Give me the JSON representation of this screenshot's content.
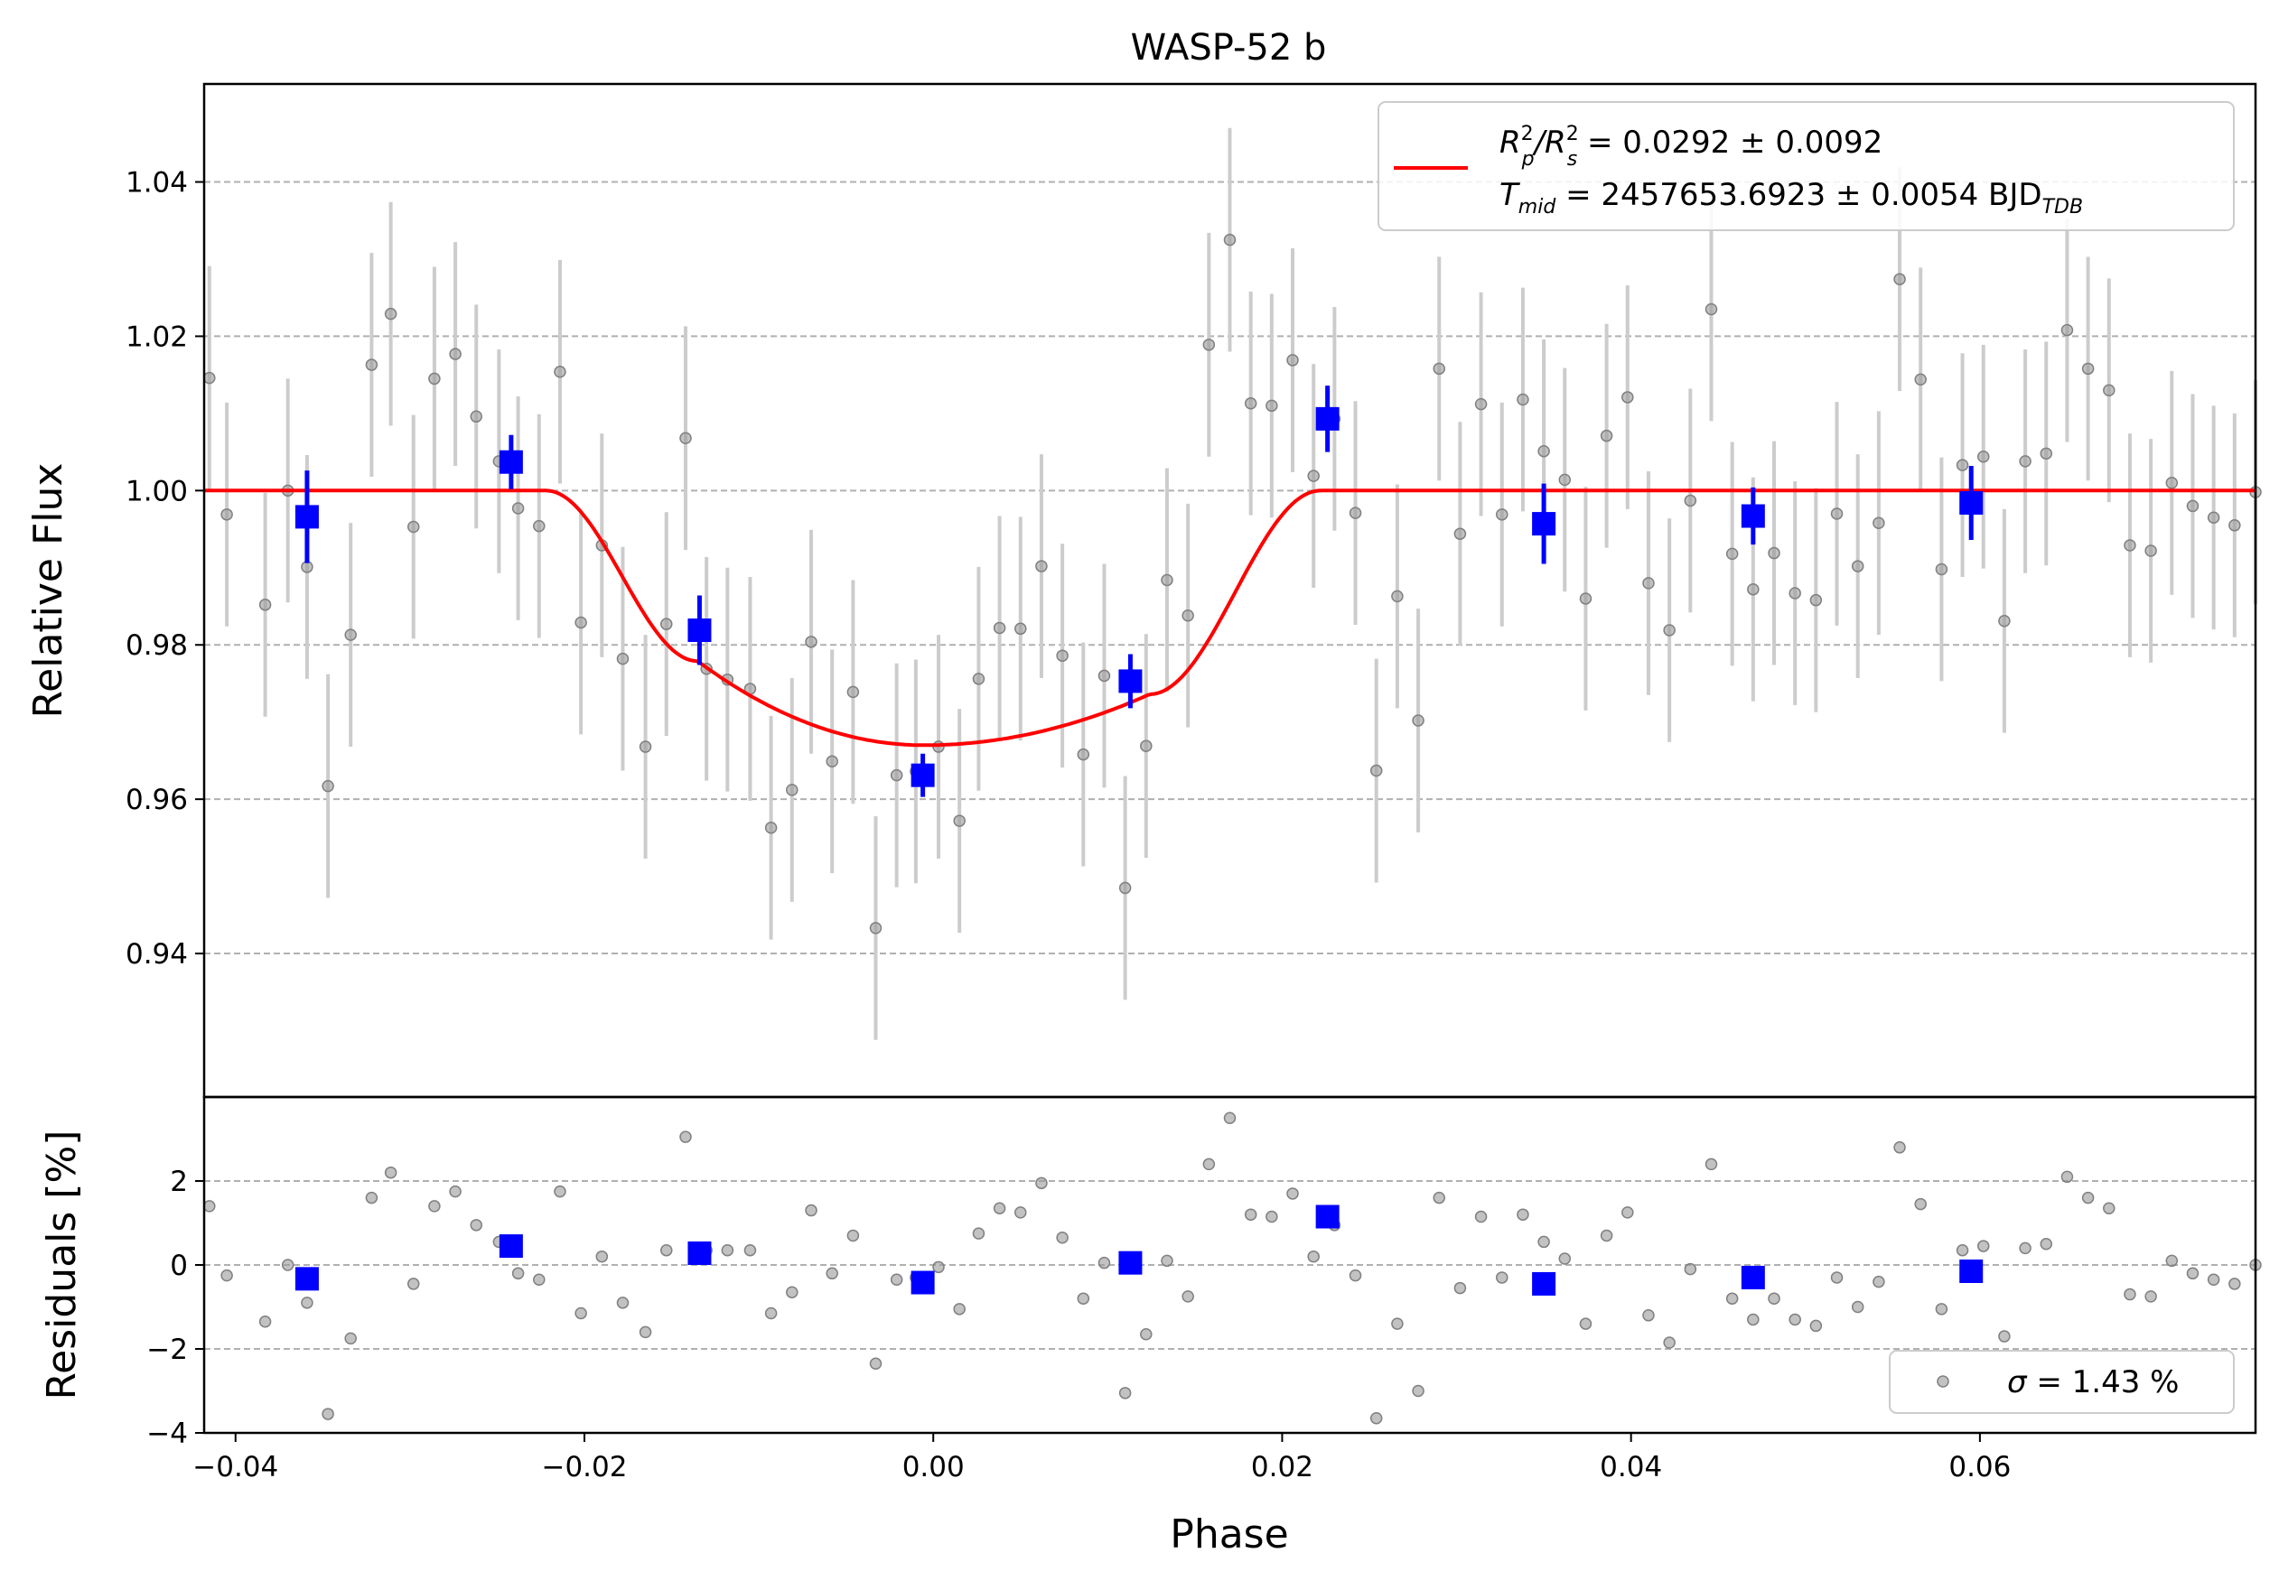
{
  "chart_data": {
    "type": "scatter",
    "title": "WASP-52 b",
    "xlabel": "Phase",
    "xlim": [
      -0.0418,
      0.0758
    ],
    "xticks": [
      -0.04,
      -0.02,
      0.0,
      0.02,
      0.04,
      0.06
    ],
    "xtick_labels": [
      "−0.04",
      "−0.02",
      "0.00",
      "0.02",
      "0.04",
      "0.06"
    ],
    "grid": "horizontal dashed",
    "top_panel": {
      "ylabel": "Relative Flux",
      "ylim": [
        0.9214,
        1.0527
      ],
      "yticks": [
        0.94,
        0.96,
        0.98,
        1.0,
        1.02,
        1.04
      ],
      "ytick_labels": [
        "0.94",
        "0.96",
        "0.98",
        "1.00",
        "1.02",
        "1.04"
      ],
      "data": {
        "x": [
          -0.0415,
          -0.0405,
          -0.0383,
          -0.037,
          -0.0359,
          -0.0347,
          -0.0334,
          -0.0322,
          -0.0311,
          -0.0298,
          -0.0286,
          -0.0274,
          -0.0262,
          -0.0249,
          -0.0238,
          -0.0226,
          -0.0214,
          -0.0202,
          -0.019,
          -0.0178,
          -0.0165,
          -0.0153,
          -0.0142,
          -0.013,
          -0.0118,
          -0.0105,
          -0.0093,
          -0.0081,
          -0.007,
          -0.0058,
          -0.0046,
          -0.0033,
          -0.0021,
          -0.001,
          0.0003,
          0.0015,
          0.0026,
          0.0038,
          0.005,
          0.0062,
          0.0074,
          0.0086,
          0.0098,
          0.011,
          0.0122,
          0.0134,
          0.0146,
          0.0158,
          0.017,
          0.0182,
          0.0194,
          0.0206,
          0.0218,
          0.023,
          0.0242,
          0.0254,
          0.0266,
          0.0278,
          0.029,
          0.0302,
          0.0314,
          0.0326,
          0.0338,
          0.035,
          0.0362,
          0.0374,
          0.0386,
          0.0398,
          0.041,
          0.0422,
          0.0434,
          0.0446,
          0.0458,
          0.047,
          0.0482,
          0.0494,
          0.0506,
          0.0518,
          0.053,
          0.0542,
          0.0554,
          0.0566,
          0.0578,
          0.059,
          0.0602,
          0.0614,
          0.0626,
          0.0638,
          0.065,
          0.0662,
          0.0674,
          0.0686,
          0.0698,
          0.071,
          0.0722,
          0.0734,
          0.0746,
          0.0758
        ],
        "y": [
          1.0146,
          0.9969,
          0.9852,
          1.0,
          0.9901,
          0.9617,
          0.9813,
          1.0163,
          1.0229,
          0.9953,
          1.0145,
          1.0177,
          1.0096,
          1.0038,
          0.9977,
          0.9954,
          1.0154,
          0.9829,
          0.9929,
          0.9782,
          0.9668,
          0.9827,
          1.0068,
          0.9769,
          0.9755,
          0.9743,
          0.9563,
          0.9612,
          0.9804,
          0.9649,
          0.9739,
          0.9433,
          0.9631,
          0.9636,
          0.9668,
          0.9572,
          0.9756,
          0.9822,
          0.9821,
          0.9902,
          0.9786,
          0.9658,
          0.976,
          0.9485,
          0.9669,
          0.9884,
          0.9838,
          1.0189,
          1.0325,
          1.0113,
          1.011,
          1.0169,
          1.0019,
          1.0093,
          0.9971,
          0.9637,
          0.9863,
          0.9702,
          1.0158,
          0.9944,
          1.0112,
          0.9969,
          1.0118,
          1.0051,
          1.0014,
          0.986,
          1.0071,
          1.0121,
          0.988,
          0.9819,
          0.9987,
          1.0235,
          0.9918,
          0.9872,
          0.9919,
          0.9867,
          0.9858,
          0.997,
          0.9902,
          0.9958,
          1.0274,
          1.0144,
          0.9898,
          1.0033,
          1.0044,
          0.9831,
          1.0038,
          1.0048,
          1.0208,
          1.0158,
          1.013,
          0.9929,
          0.9922,
          1.001,
          0.998,
          0.9965,
          0.9955,
          0.9998
        ],
        "yerr": 0.0145
      },
      "binned": {
        "x": [
          -0.0359,
          -0.0242,
          -0.0134,
          -0.0006,
          0.0113,
          0.0226,
          0.035,
          0.047,
          0.0595
        ],
        "y": [
          0.9966,
          1.0037,
          0.9819,
          0.9631,
          0.9753,
          1.0093,
          0.9957,
          0.9967,
          0.9984
        ],
        "yerr": [
          0.006,
          0.0035,
          0.0045,
          0.0028,
          0.0035,
          0.0043,
          0.0052,
          0.0037,
          0.0048
        ]
      },
      "model": {
        "baseline": 1.0,
        "depth": 0.033,
        "t1": -0.0222,
        "t2": -0.0135,
        "t3": 0.0124,
        "t4": 0.0222
      },
      "legend": {
        "placement": "top-right",
        "line1_lhs_base": "R",
        "line1_lhs_sup": "2",
        "line1_lhs_sub": "p",
        "line1_slash": "/R",
        "line1_lhs2_sup": "2",
        "line1_lhs2_sub": "s",
        "line1_rhs": " = 0.0292 ± 0.0092",
        "line2_base": "T",
        "line2_sub": "mid",
        "line2_rhs": " = 2457653.6923 ± 0.0054 BJD",
        "line2_unit_sub": "TDB"
      }
    },
    "bottom_panel": {
      "ylabel": "Residuals [%]",
      "ylim": [
        -4,
        4
      ],
      "yticks": [
        -4,
        -2,
        0,
        2
      ],
      "ytick_labels": [
        "−4",
        "−2",
        "0",
        "2"
      ],
      "residuals": {
        "x": [
          -0.0415,
          -0.0405,
          -0.0383,
          -0.037,
          -0.0359,
          -0.0347,
          -0.0334,
          -0.0322,
          -0.0311,
          -0.0298,
          -0.0286,
          -0.0274,
          -0.0262,
          -0.0249,
          -0.0238,
          -0.0226,
          -0.0214,
          -0.0202,
          -0.019,
          -0.0178,
          -0.0165,
          -0.0153,
          -0.0142,
          -0.013,
          -0.0118,
          -0.0105,
          -0.0093,
          -0.0081,
          -0.007,
          -0.0058,
          -0.0046,
          -0.0033,
          -0.0021,
          -0.001,
          0.0003,
          0.0015,
          0.0026,
          0.0038,
          0.005,
          0.0062,
          0.0074,
          0.0086,
          0.0098,
          0.011,
          0.0122,
          0.0134,
          0.0146,
          0.0158,
          0.017,
          0.0182,
          0.0194,
          0.0206,
          0.0218,
          0.023,
          0.0242,
          0.0254,
          0.0266,
          0.0278,
          0.029,
          0.0302,
          0.0314,
          0.0326,
          0.0338,
          0.035,
          0.0362,
          0.0374,
          0.0386,
          0.0398,
          0.041,
          0.0422,
          0.0434,
          0.0446,
          0.0458,
          0.047,
          0.0482,
          0.0494,
          0.0506,
          0.0518,
          0.053,
          0.0542,
          0.0554,
          0.0566,
          0.0578,
          0.059,
          0.0602,
          0.0614,
          0.0626,
          0.0638,
          0.065,
          0.0662,
          0.0674,
          0.0686,
          0.0698,
          0.071,
          0.0722,
          0.0734,
          0.0746,
          0.0758
        ],
        "y": [
          1.4,
          -0.25,
          -1.35,
          0.0,
          -0.9,
          -3.55,
          -1.75,
          1.6,
          2.2,
          -0.45,
          1.4,
          1.75,
          0.95,
          0.55,
          -0.2,
          -0.35,
          1.75,
          -1.15,
          0.2,
          -0.9,
          -1.6,
          0.35,
          3.05,
          0.35,
          0.35,
          0.35,
          -1.15,
          -0.65,
          1.3,
          -0.2,
          0.7,
          -2.35,
          -0.35,
          -0.3,
          -0.05,
          -1.05,
          0.75,
          1.35,
          1.25,
          1.95,
          0.65,
          -0.8,
          0.05,
          -3.05,
          -1.65,
          0.1,
          -0.75,
          2.4,
          3.5,
          1.2,
          1.15,
          1.7,
          0.2,
          0.95,
          -0.25,
          -3.65,
          -1.4,
          -3.0,
          1.6,
          -0.55,
          1.15,
          -0.3,
          1.2,
          0.55,
          0.15,
          -1.4,
          0.7,
          1.25,
          -1.2,
          -1.85,
          -0.1,
          2.4,
          -0.8,
          -1.3,
          -0.8,
          -1.3,
          -1.45,
          -0.3,
          -1.0,
          -0.4,
          2.8,
          1.45,
          -1.05,
          0.35,
          0.45,
          -1.7,
          0.4,
          0.5,
          2.1,
          1.6,
          1.35,
          -0.7,
          -0.75,
          0.1,
          -0.2,
          -0.35,
          -0.45,
          0.0
        ]
      },
      "binned": {
        "x": [
          -0.0359,
          -0.0242,
          -0.0134,
          -0.0006,
          0.0113,
          0.0226,
          0.035,
          0.047,
          0.0595
        ],
        "y": [
          -0.33,
          0.45,
          0.28,
          -0.42,
          0.05,
          1.15,
          -0.45,
          -0.3,
          -0.15
        ]
      },
      "legend": {
        "placement": "bottom-right",
        "sigma_symbol": "σ",
        "text": " = 1.43 %"
      }
    },
    "colors": {
      "data_points": "#999999",
      "error_bars": "#cccccc",
      "binned": "#0000ff",
      "model": "#ff0000"
    }
  }
}
